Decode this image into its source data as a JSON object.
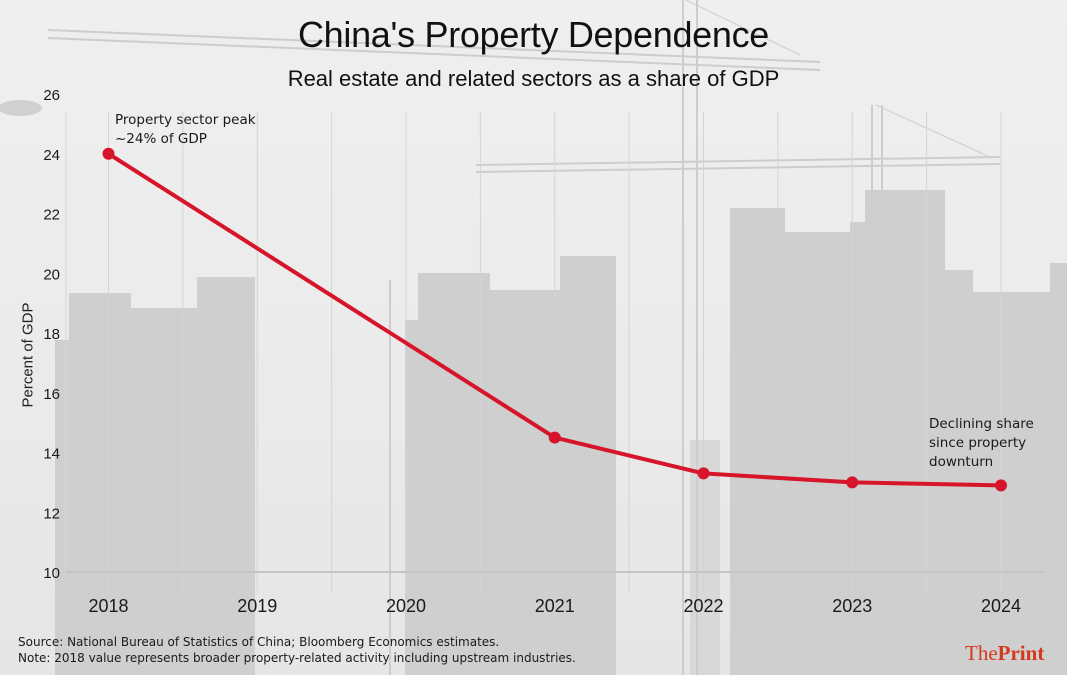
{
  "title": "China's Property Dependence",
  "subtitle": "Real estate and related sectors as a share of GDP",
  "colors": {
    "line": "#d7152a",
    "grid": "#d4d4d4",
    "axis": "#c4c4c4",
    "building": "#cecece",
    "logo": "#d33a1c"
  },
  "chart_data": {
    "type": "line",
    "title": "China's Property Dependence",
    "subtitle": "Real estate and related sectors as a share of GDP",
    "xlabel": "",
    "ylabel": "Percent of GDP",
    "x_ticks": [
      "2018",
      "2019",
      "2020",
      "2021",
      "2022",
      "2023",
      "2024"
    ],
    "y_ticks": [
      "10",
      "12",
      "14",
      "16",
      "18",
      "20",
      "22",
      "24",
      "26"
    ],
    "ylim": [
      10,
      26
    ],
    "xlim": [
      2018,
      2024
    ],
    "grid": "vertical",
    "series": [
      {
        "name": "Property share of GDP",
        "x": [
          2018,
          2021,
          2022,
          2023,
          2024
        ],
        "values": [
          24.0,
          14.5,
          13.3,
          13.0,
          12.9
        ]
      }
    ],
    "annotations": [
      {
        "target": "2018",
        "lines": [
          "Property sector peak",
          "~24% of GDP"
        ]
      },
      {
        "target": "2024",
        "lines": [
          "Declining share",
          "since property",
          "downturn"
        ]
      }
    ]
  },
  "footer": {
    "source": "Source: National Bureau of Statistics of China; Bloomberg Economics estimates.",
    "note": "Note: 2018 value represents broader property-related activity including upstream industries."
  },
  "logo": {
    "part1": "The",
    "part2": "Print"
  }
}
